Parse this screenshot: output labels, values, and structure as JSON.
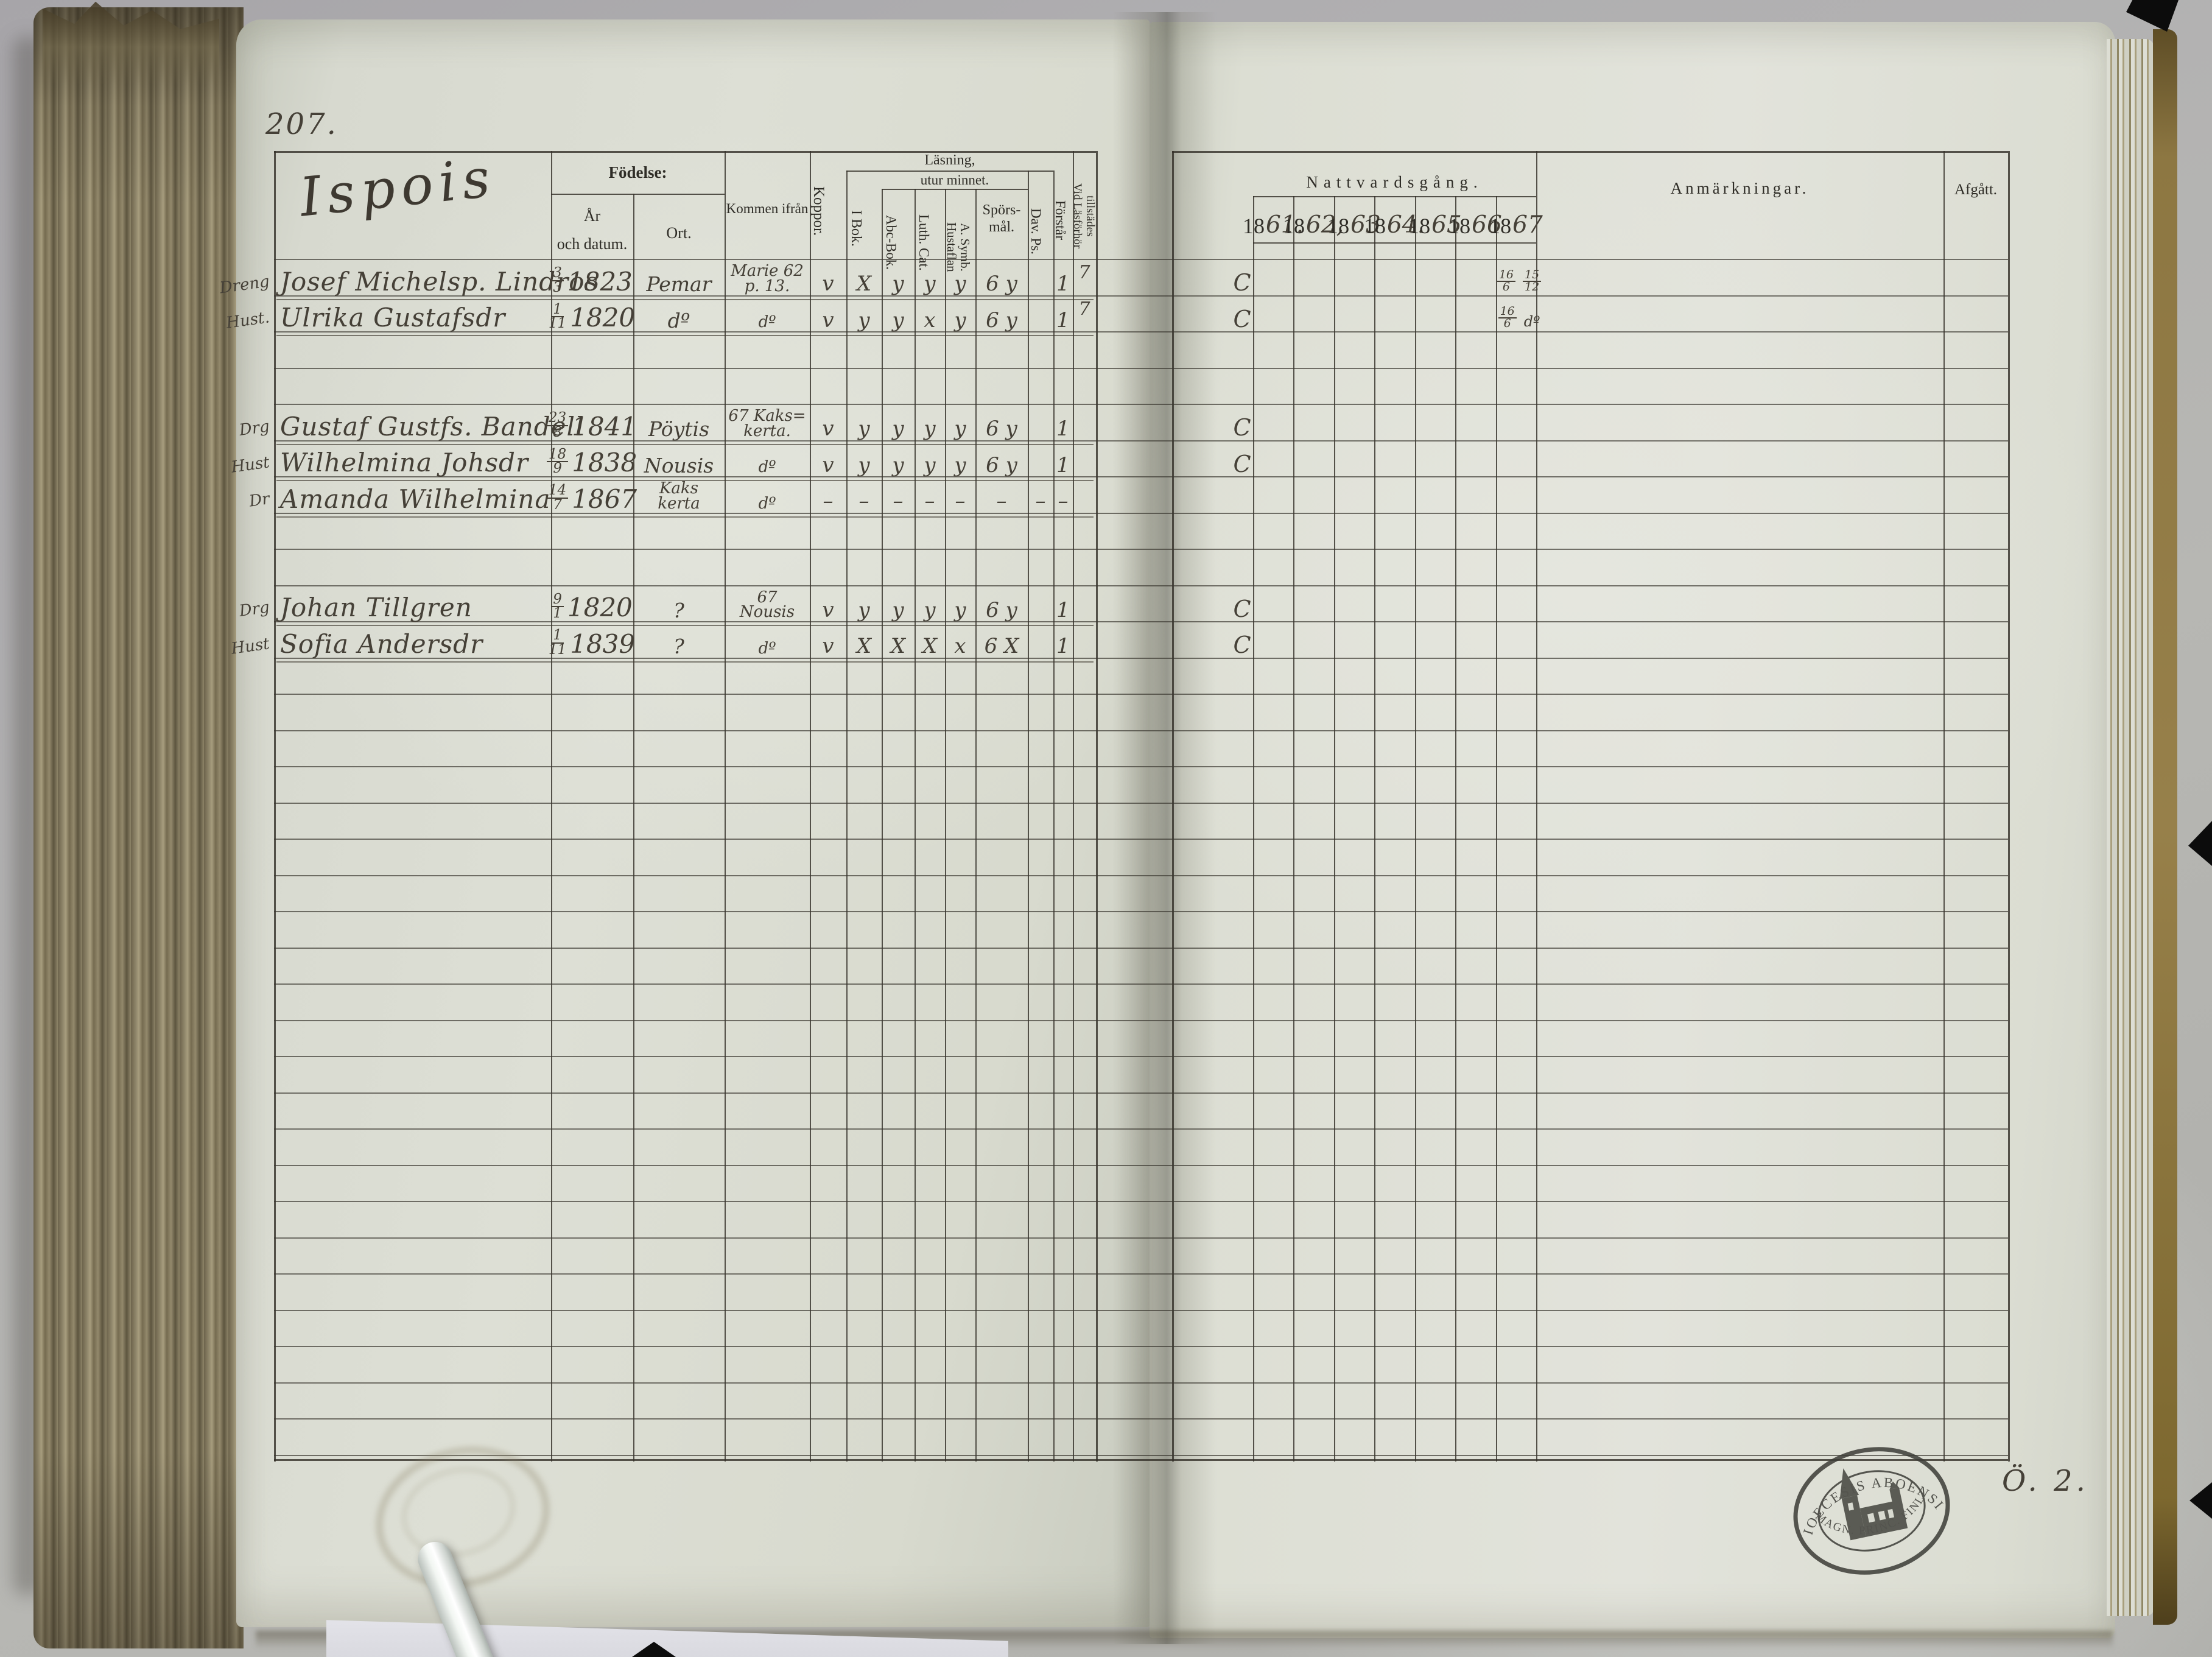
{
  "book": {
    "page_number": "207.",
    "district_title": "Ispois",
    "footer_note": "Ö. 2.",
    "stamp": {
      "top_text": "DIOECESIS ABOENSIS",
      "bottom_text": "MAGN. PRINC. FINL."
    }
  },
  "left_table": {
    "headers": {
      "fodelse": "Födelse:",
      "ar_och_datum": "År\noch datum.",
      "ort": "Ort.",
      "kommen_ifran": "Kommen ifrån",
      "koppor": "Koppor.",
      "lasning": "Läsning,",
      "utur_minnet": "utur minnet.",
      "i_bok": "I Bok.",
      "abc_bok": "Abc-Bok.",
      "luth_cat": "Luth. Cat.",
      "hustaflan": "Hustaflan\nA. Symb.",
      "sporsmal": "Spörs-\nmål.",
      "dav_ps": "Dav. Ps.",
      "forstar": "Förstår",
      "vid_lasforhor": "Vid Läsförhör\ntillstädes"
    }
  },
  "right_table": {
    "headers": {
      "nattvardsgang": "Nattvardsgång.",
      "year_prefix": "18",
      "year_suffixes": [
        "61.",
        "62,",
        "63",
        "64.",
        "65",
        "66",
        "67"
      ],
      "anmarkningar": "Anmärkningar.",
      "afgatt": "Afgått."
    }
  },
  "entries": [
    {
      "row": 1,
      "label": "Dreng",
      "name": "Josef Michelsp. Lindros",
      "birth_num": "3",
      "birth_den": "3",
      "birth_year": "1823",
      "ort": "Pemar",
      "kommen": "Marie 62\np. 13.",
      "marks": {
        "koppor": "v",
        "i_bok": "X",
        "abc_bok": "y",
        "luth_cat": "y",
        "hustaflan": "y",
        "sporsmal": "6 y",
        "dav_ps": "",
        "forstar": "1",
        "tillstades": "7"
      },
      "communion_lead": "C",
      "communion_1867": [
        "16/6",
        "15/12"
      ]
    },
    {
      "row": 2,
      "label": "Hust.",
      "name": "Ulrika Gustafsdr",
      "birth_num": "1",
      "birth_den": "11",
      "birth_year": "1820",
      "ort": "dº",
      "kommen": "dº",
      "marks": {
        "koppor": "v",
        "i_bok": "y",
        "abc_bok": "y",
        "luth_cat": "x",
        "hustaflan": "y",
        "sporsmal": "6 y",
        "dav_ps": "",
        "forstar": "1",
        "tillstades": "7"
      },
      "communion_lead": "C",
      "communion_1867": [
        "16/6",
        "dº"
      ]
    },
    {
      "row": 5,
      "label": "Drg",
      "name": "Gustaf Gustfs. Bandell",
      "birth_num": "23",
      "birth_den": "8",
      "birth_year": "1841",
      "ort": "Pöytis",
      "kommen": "67 Kaks=\nkerta.",
      "marks": {
        "koppor": "v",
        "i_bok": "y",
        "abc_bok": "y",
        "luth_cat": "y",
        "hustaflan": "y",
        "sporsmal": "6 y",
        "dav_ps": "",
        "forstar": "1",
        "tillstades": ""
      },
      "communion_lead": "C",
      "communion_1867": []
    },
    {
      "row": 6,
      "label": "Hust",
      "name": "Wilhelmina Johsdr",
      "birth_num": "18",
      "birth_den": "9",
      "birth_year": "1838",
      "ort": "Nousis",
      "kommen": "dº",
      "marks": {
        "koppor": "v",
        "i_bok": "y",
        "abc_bok": "y",
        "luth_cat": "y",
        "hustaflan": "y",
        "sporsmal": "6 y",
        "dav_ps": "",
        "forstar": "1",
        "tillstades": ""
      },
      "communion_lead": "C",
      "communion_1867": []
    },
    {
      "row": 7,
      "label": "Dr",
      "name": "Amanda Wilhelmina",
      "birth_num": "14",
      "birth_den": "7",
      "birth_year": "1867",
      "ort": "Kaks\nkerta",
      "kommen": "dº",
      "marks": {
        "koppor": "–",
        "i_bok": "–",
        "abc_bok": "–",
        "luth_cat": "–",
        "hustaflan": "–",
        "sporsmal": "–",
        "dav_ps": "–",
        "forstar": "–",
        "tillstades": ""
      },
      "communion_lead": "",
      "communion_1867": []
    },
    {
      "row": 10,
      "label": "Drg",
      "name": "Johan Tillgren",
      "birth_num": "9",
      "birth_den": "1",
      "birth_year": "1820",
      "ort": "?",
      "kommen": "67\nNousis",
      "marks": {
        "koppor": "v",
        "i_bok": "y",
        "abc_bok": "y",
        "luth_cat": "y",
        "hustaflan": "y",
        "sporsmal": "6 y",
        "dav_ps": "",
        "forstar": "1",
        "tillstades": ""
      },
      "communion_lead": "C",
      "communion_1867": []
    },
    {
      "row": 11,
      "label": "Hust",
      "name": "Sofia Andersdr",
      "birth_num": "1",
      "birth_den": "11",
      "birth_year": "1839",
      "ort": "?",
      "kommen": "dº",
      "marks": {
        "koppor": "v",
        "i_bok": "X",
        "abc_bok": "X",
        "luth_cat": "X",
        "hustaflan": "x",
        "sporsmal": "6 X",
        "dav_ps": "",
        "forstar": "1",
        "tillstades": ""
      },
      "communion_lead": "C",
      "communion_1867": []
    }
  ]
}
